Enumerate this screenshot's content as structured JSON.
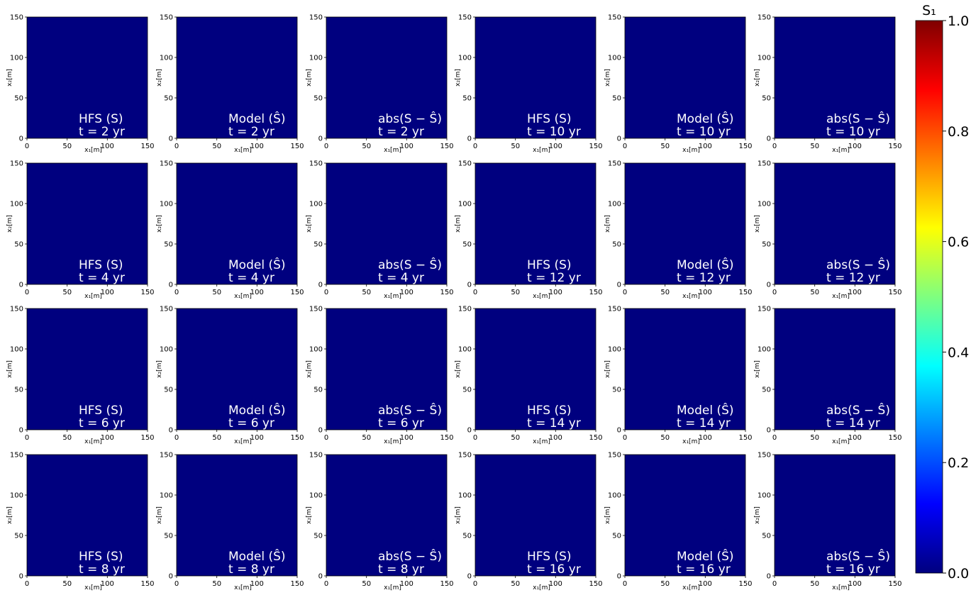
{
  "colorbar": {
    "label": "S₁",
    "ticks": [
      "0.0",
      "0.2",
      "0.4",
      "0.6",
      "0.8",
      "1.0"
    ],
    "range": [
      0,
      1
    ],
    "colormap": "jet",
    "colors": [
      "#00007f",
      "#0000ff",
      "#007fff",
      "#00ffff",
      "#7fff7f",
      "#ffff00",
      "#ff7f00",
      "#ff0000",
      "#7f0000"
    ]
  },
  "axes_common": {
    "xlabel": "x₁[m]",
    "ylabel": "x₂[m]",
    "xticks": [
      "0",
      "50",
      "100",
      "150"
    ],
    "yticks": [
      "0",
      "50",
      "100",
      "150"
    ],
    "xlim": [
      0,
      150
    ],
    "ylim": [
      0,
      150
    ]
  },
  "columns": [
    {
      "type": "HFS",
      "label": "HFS (S)"
    },
    {
      "type": "Model",
      "label": "Model (Ŝ)"
    },
    {
      "type": "abs",
      "label": "abs(S − Ŝ)"
    },
    {
      "type": "HFS",
      "label": "HFS (S)"
    },
    {
      "type": "Model",
      "label": "Model (Ŝ)"
    },
    {
      "type": "abs",
      "label": "abs(S − Ŝ)"
    }
  ],
  "chart_data": {
    "type": "heatmap",
    "panels": [
      {
        "label": "HFS (S)",
        "time": "t = 2 yr"
      },
      {
        "label": "Model (Ŝ)",
        "time": "t = 2 yr"
      },
      {
        "label": "abs(S − Ŝ)",
        "time": "t = 2 yr"
      },
      {
        "label": "HFS (S)",
        "time": "t = 10 yr"
      },
      {
        "label": "Model (Ŝ)",
        "time": "t = 10 yr"
      },
      {
        "label": "abs(S − Ŝ)",
        "time": "t = 10 yr"
      },
      {
        "label": "HFS (S)",
        "time": "t = 4 yr"
      },
      {
        "label": "Model (Ŝ)",
        "time": "t = 4 yr"
      },
      {
        "label": "abs(S − Ŝ)",
        "time": "t = 4 yr"
      },
      {
        "label": "HFS (S)",
        "time": "t = 12 yr"
      },
      {
        "label": "Model (Ŝ)",
        "time": "t = 12 yr"
      },
      {
        "label": "abs(S − Ŝ)",
        "time": "t = 12 yr"
      },
      {
        "label": "HFS (S)",
        "time": "t = 6 yr"
      },
      {
        "label": "Model (Ŝ)",
        "time": "t = 6 yr"
      },
      {
        "label": "abs(S − Ŝ)",
        "time": "t = 6 yr"
      },
      {
        "label": "HFS (S)",
        "time": "t = 14 yr"
      },
      {
        "label": "Model (Ŝ)",
        "time": "t = 14 yr"
      },
      {
        "label": "abs(S − Ŝ)",
        "time": "t = 14 yr"
      },
      {
        "label": "HFS (S)",
        "time": "t = 8 yr"
      },
      {
        "label": "Model (Ŝ)",
        "time": "t = 8 yr"
      },
      {
        "label": "abs(S − Ŝ)",
        "time": "t = 8 yr"
      },
      {
        "label": "HFS (S)",
        "time": "t = 16 yr"
      },
      {
        "label": "Model (Ŝ)",
        "time": "t = 16 yr"
      },
      {
        "label": "abs(S − Ŝ)",
        "time": "t = 16 yr"
      }
    ]
  }
}
